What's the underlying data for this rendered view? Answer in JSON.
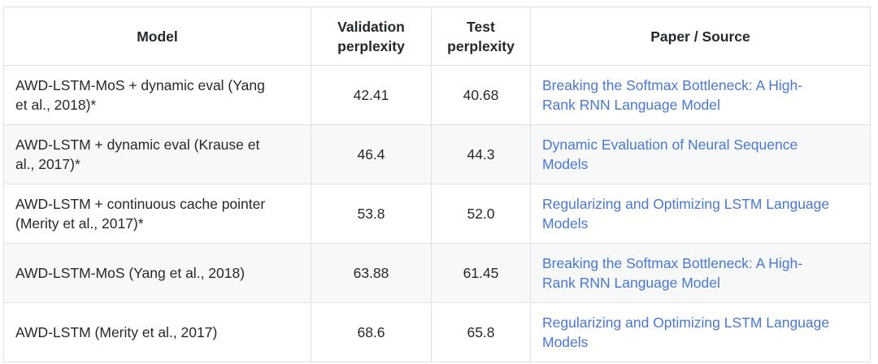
{
  "table": {
    "headers": {
      "model": "Model",
      "validation": "Validation perplexity",
      "test": "Test perplexity",
      "paper": "Paper / Source"
    },
    "rows": [
      {
        "model": "AWD-LSTM-MoS + dynamic eval (Yang et al., 2018)*",
        "validation": "42.41",
        "test": "40.68",
        "paper": "Breaking the Softmax Bottleneck: A High-Rank RNN Language Model"
      },
      {
        "model": "AWD-LSTM + dynamic eval (Krause et al., 2017)*",
        "validation": "46.4",
        "test": "44.3",
        "paper": "Dynamic Evaluation of Neural Sequence Models"
      },
      {
        "model": "AWD-LSTM + continuous cache pointer (Merity et al., 2017)*",
        "validation": "53.8",
        "test": "52.0",
        "paper": "Regularizing and Optimizing LSTM Language Models"
      },
      {
        "model": "AWD-LSTM-MoS (Yang et al., 2018)",
        "validation": "63.88",
        "test": "61.45",
        "paper": "Breaking the Softmax Bottleneck: A High-Rank RNN Language Model"
      },
      {
        "model": "AWD-LSTM (Merity et al., 2017)",
        "validation": "68.6",
        "test": "65.8",
        "paper": "Regularizing and Optimizing LSTM Language Models"
      }
    ]
  },
  "colors": {
    "link_blue": "#4a77d4",
    "border_gray": "#dfe2e5",
    "stripe_gray": "#f6f8fa",
    "text_dark": "#24292e"
  }
}
